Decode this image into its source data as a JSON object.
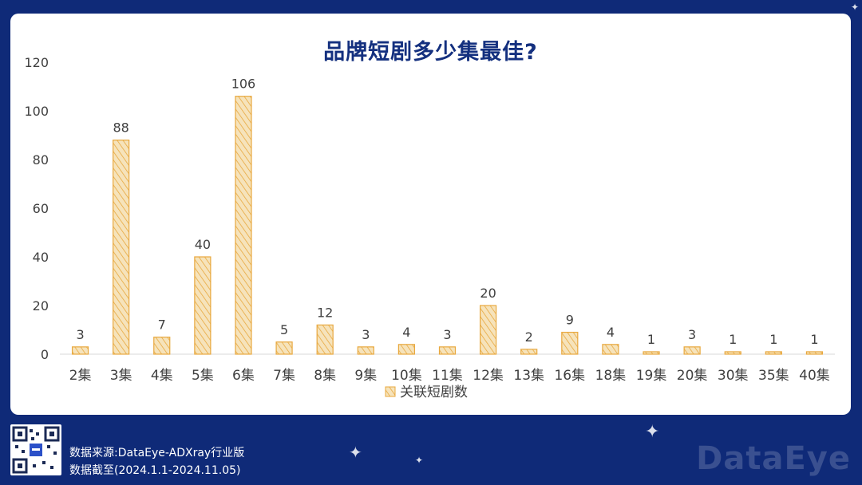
{
  "chart_data": {
    "type": "bar",
    "title": "品牌短剧多少集最佳?",
    "categories": [
      "2集",
      "3集",
      "4集",
      "5集",
      "6集",
      "7集",
      "8集",
      "9集",
      "10集",
      "11集",
      "12集",
      "13集",
      "16集",
      "18集",
      "19集",
      "20集",
      "30集",
      "35集",
      "40集"
    ],
    "series": [
      {
        "name": "关联短剧数",
        "values": [
          3,
          88,
          7,
          40,
          106,
          5,
          12,
          3,
          4,
          3,
          20,
          2,
          9,
          4,
          1,
          3,
          1,
          1,
          1
        ]
      }
    ],
    "ylim": [
      0,
      120
    ],
    "yticks": [
      0,
      20,
      40,
      60,
      80,
      100,
      120
    ],
    "xlabel": "",
    "ylabel": "",
    "legend": "bottom",
    "grid": false,
    "bar_color": "#f3d9a4",
    "bar_stroke": "#e8a83e"
  },
  "footer": {
    "source": "数据来源:DataEye-ADXray行业版",
    "period": "数据截至(2024.1.1-2024.11.05)",
    "watermark": "DataEye"
  },
  "colors": {
    "background": "#0f2a78",
    "title": "#14307f"
  }
}
